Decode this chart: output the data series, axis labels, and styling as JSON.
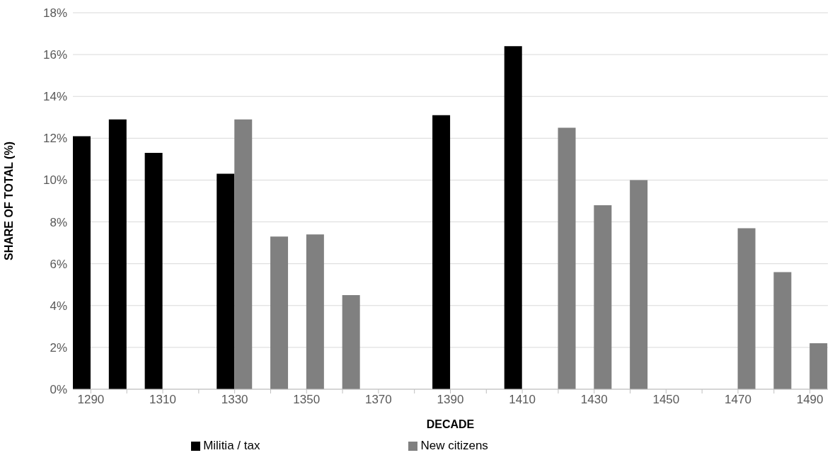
{
  "chart_data": {
    "type": "bar",
    "xlabel": "DECADE",
    "ylabel": "SHARE OF TOTAL (%)",
    "categories": [
      "1290",
      null,
      "1310",
      null,
      "1330",
      null,
      "1350",
      null,
      "1370",
      null,
      "1390",
      null,
      "1410",
      null,
      "1430",
      null,
      "1450",
      null,
      "1470",
      null,
      "1490"
    ],
    "series": [
      {
        "name": "Militia / tax",
        "color": "#000000",
        "values": [
          12.1,
          12.9,
          11.3,
          null,
          10.3,
          null,
          null,
          null,
          null,
          null,
          13.1,
          null,
          16.4,
          null,
          null,
          null,
          null,
          null,
          null,
          null,
          null
        ]
      },
      {
        "name": "New citizens",
        "color": "#808080",
        "values": [
          null,
          null,
          null,
          null,
          12.9,
          7.3,
          7.4,
          4.5,
          null,
          null,
          null,
          null,
          null,
          12.5,
          8.8,
          10.0,
          null,
          null,
          7.7,
          5.6,
          2.2
        ]
      }
    ],
    "ylim": [
      0,
      18
    ],
    "yticks": [
      {
        "value": 0,
        "label": "0%"
      },
      {
        "value": 2,
        "label": "2%"
      },
      {
        "value": 4,
        "label": "4%"
      },
      {
        "value": 6,
        "label": "6%"
      },
      {
        "value": 8,
        "label": "8%"
      },
      {
        "value": 10,
        "label": "10%"
      },
      {
        "value": 12,
        "label": "12%"
      },
      {
        "value": 14,
        "label": "14%"
      },
      {
        "value": 16,
        "label": "16%"
      },
      {
        "value": 18,
        "label": "18%"
      }
    ],
    "grid": "y",
    "legend": "bottom"
  }
}
